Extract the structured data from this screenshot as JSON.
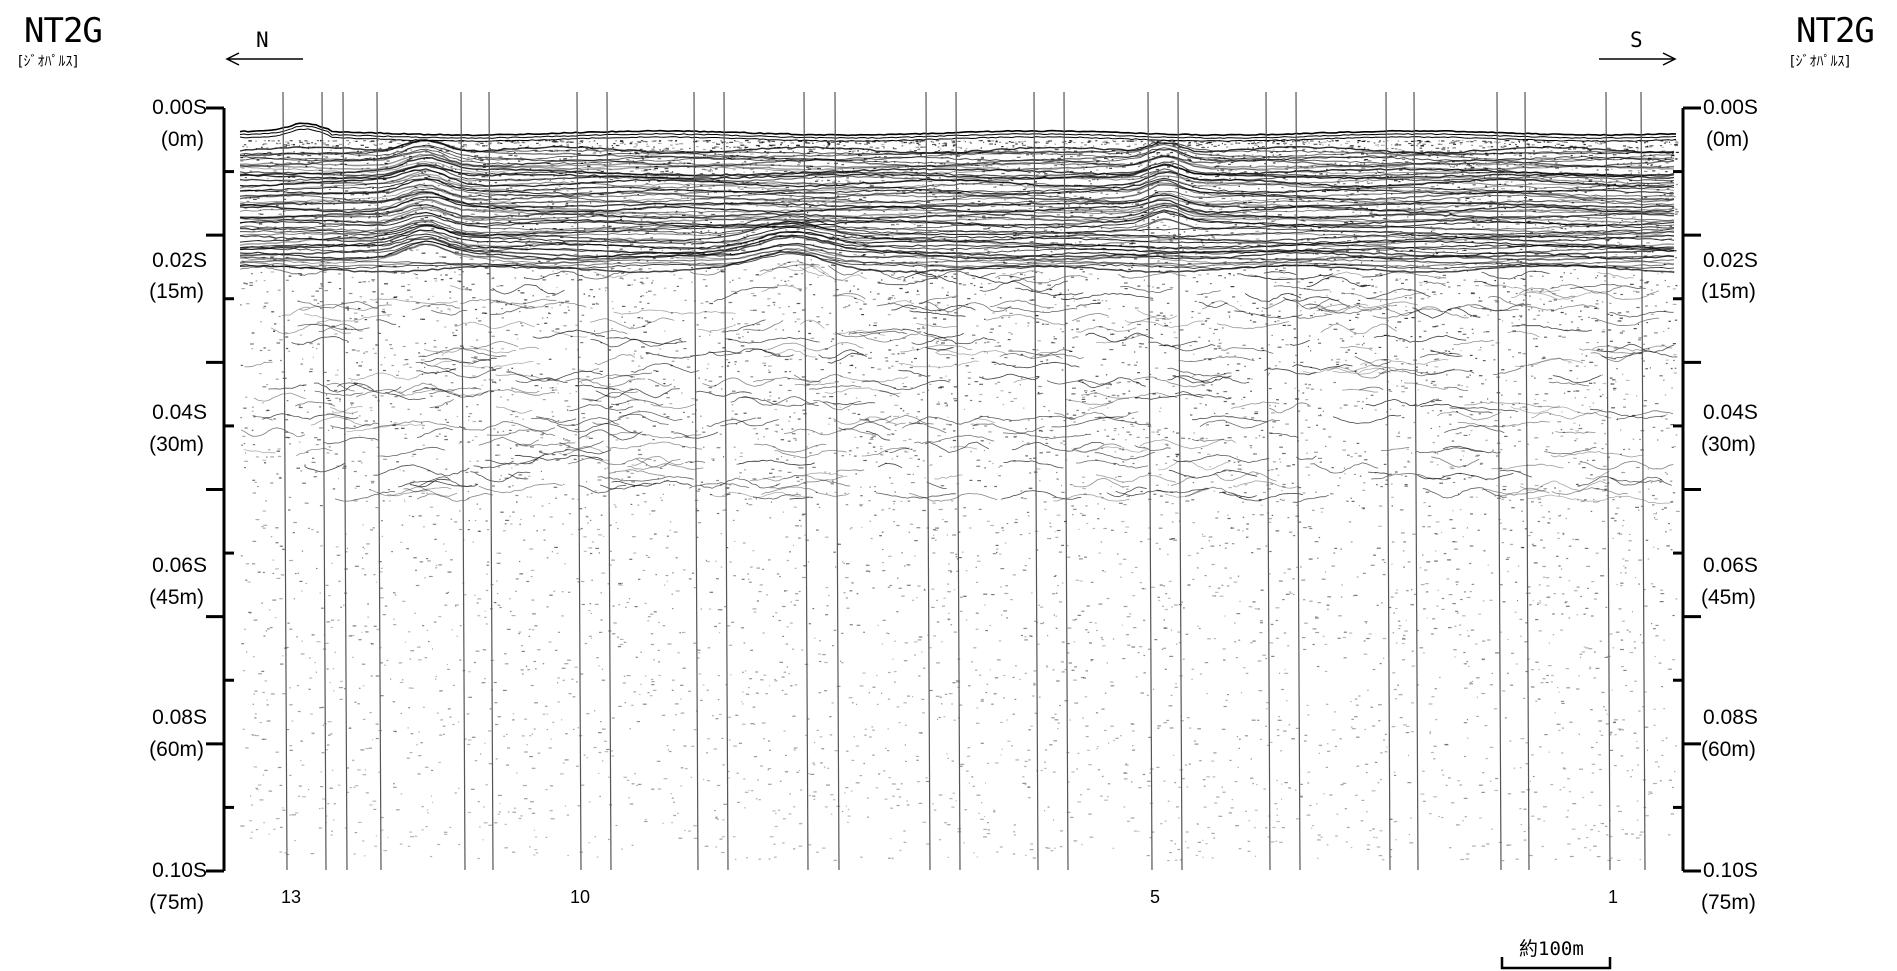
{
  "header": {
    "left_title": "NT2G",
    "left_subtitle": "[ｼﾞｵﾊﾟﾙｽ]",
    "right_title": "NT2G",
    "right_subtitle": "[ｼﾞｵﾊﾟﾙｽ]",
    "dir_left": "N",
    "dir_right": "S"
  },
  "axes": {
    "left": [
      {
        "time": "0.00S",
        "depth": "(0m)"
      },
      {
        "time": "0.02S",
        "depth": "(15m)"
      },
      {
        "time": "0.04S",
        "depth": "(30m)"
      },
      {
        "time": "0.06S",
        "depth": "(45m)"
      },
      {
        "time": "0.08S",
        "depth": "(60m)"
      },
      {
        "time": "0.10S",
        "depth": "(75m)"
      }
    ],
    "right": [
      {
        "time": "0.00S",
        "depth": "(0m)"
      },
      {
        "time": "0.02S",
        "depth": "(15m)"
      },
      {
        "time": "0.04S",
        "depth": "(30m)"
      },
      {
        "time": "0.06S",
        "depth": "(45m)"
      },
      {
        "time": "0.08S",
        "depth": "(60m)"
      },
      {
        "time": "0.10S",
        "depth": "(75m)"
      }
    ]
  },
  "shotpoints": [
    "13",
    "10",
    "5",
    "1"
  ],
  "scale_bar": {
    "label": "約100m"
  },
  "colors": {
    "ink": "#000000",
    "background": "#ffffff",
    "fix_line": "#555555"
  }
}
